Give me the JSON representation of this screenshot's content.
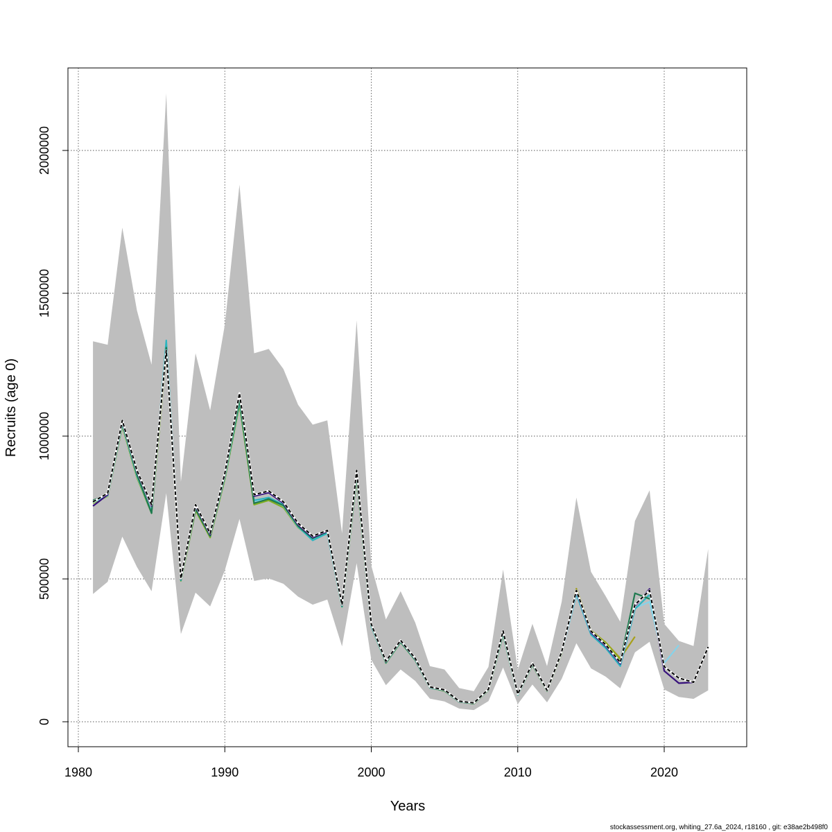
{
  "chart_data": {
    "type": "line",
    "xlabel": "Years",
    "ylabel": "Recruits (age 0)",
    "xlim": [
      1980,
      2025
    ],
    "ylim": [
      0,
      2200000
    ],
    "x_ticks": [
      1980,
      1990,
      2000,
      2010,
      2020
    ],
    "y_ticks": [
      0,
      500000,
      1000000,
      1500000,
      2000000
    ],
    "grid": true,
    "legend": "none",
    "footnote": "stockassessment.org, whiting_27.6a_2024, r18160 , git: e38ae2b498f0",
    "colors": {
      "band": "#bebebe",
      "base": "#000000",
      "series": [
        "#36107b",
        "#1f7a50",
        "#2cb5c0",
        "#86d3ea",
        "#7fae22",
        "#a8a01a"
      ],
      "grid": "#555555"
    },
    "confidence_band": {
      "x": [
        1981,
        1982,
        1983,
        1984,
        1985,
        1986,
        1987,
        1988,
        1989,
        1990,
        1991,
        1992,
        1993,
        1994,
        1995,
        1996,
        1997,
        1998,
        1999,
        2000,
        2001,
        2002,
        2003,
        2004,
        2005,
        2006,
        2007,
        2008,
        2009,
        2010,
        2011,
        2012,
        2013,
        2014,
        2015,
        2016,
        2017,
        2018,
        2019,
        2020,
        2021,
        2022,
        2023
      ],
      "lower": [
        447000,
        490000,
        648000,
        542000,
        457000,
        800000,
        307000,
        452000,
        404000,
        530000,
        710000,
        493000,
        502000,
        483000,
        438000,
        410000,
        428000,
        264000,
        555000,
        217000,
        128000,
        183000,
        143000,
        81000,
        71000,
        46000,
        41000,
        72000,
        190000,
        62000,
        130000,
        68000,
        150000,
        275000,
        187000,
        158000,
        117000,
        243000,
        280000,
        113000,
        87000,
        80000,
        110000
      ],
      "upper": [
        1332000,
        1320000,
        1730000,
        1440000,
        1250000,
        2200000,
        840000,
        1290000,
        1090000,
        1390000,
        1880000,
        1290000,
        1305000,
        1235000,
        1110000,
        1040000,
        1055000,
        660000,
        1405000,
        547000,
        358000,
        457000,
        347000,
        195000,
        183000,
        118000,
        107000,
        192000,
        533000,
        182000,
        343000,
        195000,
        420000,
        785000,
        525000,
        440000,
        350000,
        703000,
        810000,
        343000,
        283000,
        265000,
        605000
      ]
    },
    "series": [
      {
        "x": [
          1981,
          1982,
          1983,
          1984,
          1985,
          1986,
          1987,
          1988,
          1989,
          1990,
          1991,
          1992,
          1993,
          1994,
          1995,
          1996,
          1997,
          1998,
          1999,
          2000,
          2001,
          2002,
          2003,
          2004,
          2005,
          2006,
          2007,
          2008,
          2009,
          2010,
          2011,
          2012,
          2013,
          2014,
          2015,
          2016,
          2017,
          2018,
          2019,
          2020,
          2021,
          2022,
          2023
        ],
        "values": [
          770000,
          800000,
          1055000,
          880000,
          760000,
          1300000,
          502000,
          760000,
          660000,
          870000,
          1150000,
          795000,
          808000,
          770000,
          695000,
          650000,
          670000,
          410000,
          880000,
          342000,
          212000,
          285000,
          222000,
          122000,
          112000,
          72000,
          66000,
          114000,
          318000,
          97000,
          205000,
          110000,
          245000,
          460000,
          317000,
          270000,
          208000,
          410000,
          460000,
          193000,
          153000,
          138000,
          262000
        ],
        "line_style": "dashed"
      },
      {
        "x": [
          1981,
          1982,
          1983,
          1984,
          1985,
          1986,
          1987,
          1988,
          1989,
          1990,
          1991,
          1992,
          1993,
          1994,
          1995,
          1996,
          1997,
          1998,
          1999,
          2000,
          2001,
          2002,
          2003,
          2004,
          2005,
          2006,
          2007,
          2008,
          2009,
          2010,
          2011,
          2012,
          2013,
          2014,
          2015,
          2016,
          2017,
          2018,
          2019,
          2020,
          2021,
          2022
        ],
        "values": [
          755000,
          795000,
          1050000,
          875000,
          755000,
          1295000,
          500000,
          755000,
          655000,
          865000,
          1148000,
          790000,
          802000,
          765000,
          690000,
          645000,
          667000,
          408000,
          875000,
          340000,
          210000,
          283000,
          220000,
          121000,
          111000,
          71000,
          65000,
          113000,
          315000,
          96000,
          203000,
          109000,
          243000,
          455000,
          312000,
          265000,
          203000,
          405000,
          465000,
          178000,
          135000,
          138000
        ]
      },
      {
        "x": [
          1981,
          1982,
          1983,
          1984,
          1985,
          1986,
          1987,
          1988,
          1989,
          1990,
          1991,
          1992,
          1993,
          1994,
          1995,
          1996,
          1997,
          1998,
          1999,
          2000,
          2001,
          2002,
          2003,
          2004,
          2005,
          2006,
          2007,
          2008,
          2009,
          2010,
          2011,
          2012,
          2013,
          2014,
          2015,
          2016,
          2017,
          2018,
          2019
        ],
        "values": [
          775000,
          795000,
          1045000,
          865000,
          730000,
          1310000,
          497000,
          745000,
          650000,
          860000,
          1125000,
          765000,
          780000,
          757000,
          685000,
          642000,
          665000,
          405000,
          860000,
          338000,
          207000,
          280000,
          217000,
          120000,
          109000,
          70000,
          64000,
          112000,
          310000,
          95000,
          200000,
          108000,
          242000,
          460000,
          315000,
          268000,
          210000,
          450000,
          430000
        ]
      },
      {
        "x": [
          1981,
          1982,
          1983,
          1984,
          1985,
          1986,
          1987,
          1988,
          1989,
          1990,
          1991,
          1992,
          1993,
          1994,
          1995,
          1996,
          1997,
          1998,
          1999,
          2000,
          2001,
          2002,
          2003,
          2004,
          2005,
          2006,
          2007,
          2008,
          2009,
          2010,
          2011,
          2012,
          2013,
          2014,
          2015,
          2016,
          2017,
          2018,
          2019,
          2020
        ],
        "values": [
          770000,
          793000,
          1045000,
          862000,
          735000,
          1335000,
          495000,
          757000,
          653000,
          858000,
          1120000,
          775000,
          785000,
          760000,
          683000,
          635000,
          660000,
          403000,
          865000,
          335000,
          207000,
          280000,
          216000,
          120000,
          109000,
          70000,
          64000,
          112000,
          308000,
          94000,
          202000,
          108000,
          243000,
          448000,
          305000,
          258000,
          195000,
          395000,
          445000,
          200000
        ]
      },
      {
        "x": [
          1981,
          1982,
          1983,
          1984,
          1985,
          1986,
          1987,
          1988,
          1989,
          1990,
          1991,
          1992,
          1993,
          1994,
          1995,
          1996,
          1997,
          1998,
          1999,
          2000,
          2001,
          2002,
          2003,
          2004,
          2005,
          2006,
          2007,
          2008,
          2009,
          2010,
          2011,
          2012,
          2013,
          2014,
          2015,
          2016,
          2017,
          2018,
          2019,
          2020,
          2021
        ],
        "values": [
          768000,
          792000,
          1040000,
          860000,
          732000,
          1320000,
          495000,
          752000,
          650000,
          856000,
          1118000,
          772000,
          782000,
          755000,
          682000,
          637000,
          660000,
          403000,
          860000,
          335000,
          206000,
          279000,
          216000,
          119000,
          109000,
          70000,
          64000,
          112000,
          307000,
          94000,
          200000,
          108000,
          242000,
          445000,
          307000,
          260000,
          198000,
          398000,
          420000,
          205000,
          268000
        ]
      },
      {
        "x": [
          1981,
          1982,
          1983,
          1984,
          1985,
          1986,
          1987,
          1988,
          1989,
          1990,
          1991,
          1992,
          1993,
          1994,
          1995,
          1996,
          1997,
          1998,
          1999,
          2000,
          2001,
          2002,
          2003,
          2004,
          2005,
          2006,
          2007,
          2008,
          2009,
          2010,
          2011,
          2012,
          2013,
          2014,
          2015,
          2016,
          2017
        ],
        "values": [
          765000,
          790000,
          1035000,
          855000,
          730000,
          1290000,
          493000,
          740000,
          645000,
          850000,
          1110000,
          760000,
          775000,
          750000,
          680000,
          640000,
          662000,
          402000,
          855000,
          335000,
          205000,
          278000,
          215000,
          119000,
          108000,
          70000,
          63000,
          111000,
          305000,
          94000,
          199000,
          107000,
          240000,
          462000,
          318000,
          275000,
          215000
        ]
      },
      {
        "x": [
          1981,
          1982,
          1983,
          1984,
          1985,
          1986,
          1987,
          1988,
          1989,
          1990,
          1991,
          1992,
          1993,
          1994,
          1995,
          1996,
          1997,
          1998,
          1999,
          2000,
          2001,
          2002,
          2003,
          2004,
          2005,
          2006,
          2007,
          2008,
          2009,
          2010,
          2011,
          2012,
          2013,
          2014,
          2015,
          2016,
          2017,
          2018
        ],
        "values": [
          770000,
          792000,
          1040000,
          860000,
          733000,
          1300000,
          495000,
          745000,
          648000,
          852000,
          1115000,
          762000,
          778000,
          752000,
          683000,
          640000,
          663000,
          403000,
          858000,
          336000,
          206000,
          279000,
          216000,
          120000,
          109000,
          70000,
          64000,
          112000,
          306000,
          95000,
          200000,
          108000,
          241000,
          466000,
          320000,
          278000,
          222000,
          298000
        ]
      }
    ]
  }
}
